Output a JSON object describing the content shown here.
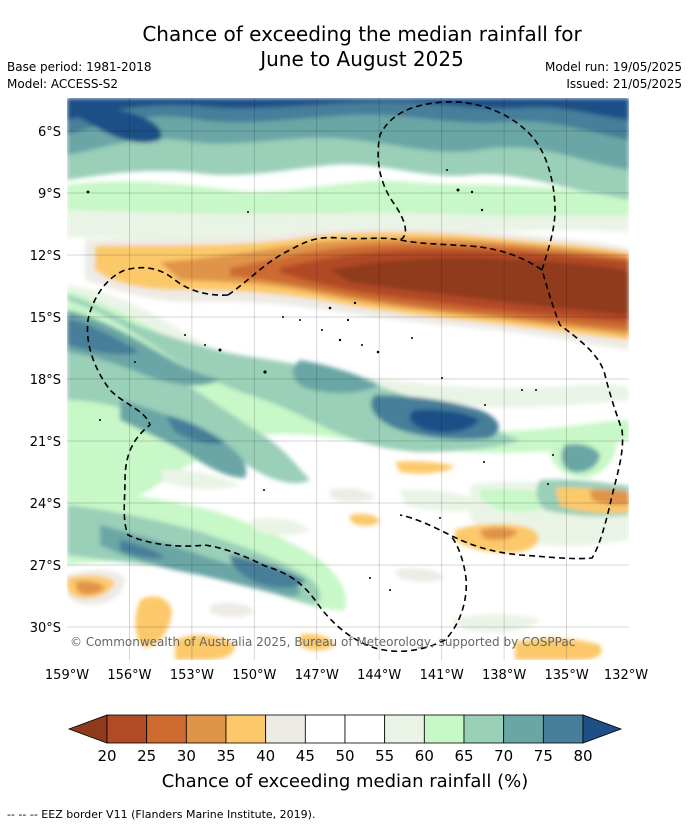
{
  "title_line1": "Chance of exceeding the median rainfall for",
  "title_line2": "June to August 2025",
  "base_period": "Base period: 1981-2018",
  "model": "Model: ACCESS-S2",
  "model_run": "Model run: 19/05/2025",
  "issued": "Issued: 21/05/2025",
  "copyright": "© Commonwealth of Australia 2025, Bureau of Meteorology, supported by COSPPac",
  "lat_labels": [
    "6°S",
    "9°S",
    "12°S",
    "15°S",
    "18°S",
    "21°S",
    "24°S",
    "27°S",
    "30°S"
  ],
  "lon_labels": [
    "159°W",
    "156°W",
    "153°W",
    "150°W",
    "147°W",
    "144°W",
    "141°W",
    "138°W",
    "135°W",
    "132°W"
  ],
  "colorbar": {
    "ticks": [
      "20",
      "25",
      "30",
      "35",
      "40",
      "45",
      "50",
      "55",
      "60",
      "65",
      "70",
      "75",
      "80"
    ],
    "colors": [
      "#8f3a1c",
      "#b24a25",
      "#cc6a30",
      "#e0944a",
      "#fcc96a",
      "#eeebe6",
      "#ffffff",
      "#ffffff",
      "#eaf4e6",
      "#c8f7c8",
      "#9acfb8",
      "#6aa6a6",
      "#477e99",
      "#1e4f86"
    ],
    "label": "Chance of exceeding median rainfall (%)"
  },
  "footer": "--  --  -- EEZ border V11 (Flanders Marine Institute, 2019)."
}
